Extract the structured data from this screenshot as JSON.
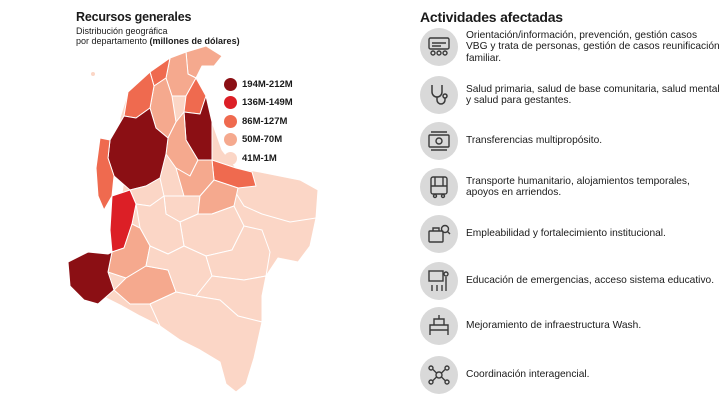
{
  "map_panel": {
    "title": "Recursos generales",
    "subtitle_line1": "Distribución geográfica",
    "subtitle_line2_prefix": "por departamento ",
    "subtitle_line2_bold": "(millones de dólares)",
    "legend": [
      {
        "label": "194M-212M",
        "color": "#8b0f14"
      },
      {
        "label": "136M-149M",
        "color": "#dc1f26"
      },
      {
        "label": "86M-127M",
        "color": "#ef6a4f"
      },
      {
        "label": "50M-70M",
        "color": "#f5a98e"
      },
      {
        "label": "41M-1M",
        "color": "#fbd6c6"
      }
    ]
  },
  "activities": {
    "title": "Actividades afectadas",
    "items": [
      {
        "icon": "people-network-icon",
        "text": "Orientación/información, prevención, gestión casos VBG y trata de personas, gestión de casos reunificación familiar."
      },
      {
        "icon": "stethoscope-icon",
        "text": "Salud primaria, salud de base comunitaria, salud mental y salud para gestantes."
      },
      {
        "icon": "cash-transfer-icon",
        "text": "Transferencias multipropósito."
      },
      {
        "icon": "bus-icon",
        "text": "Transporte humanitario, alojamientos temporales, apoyos en arriendos."
      },
      {
        "icon": "briefcase-search-icon",
        "text": "Empleabilidad y fortalecimiento institucional."
      },
      {
        "icon": "education-icon",
        "text": "Educación de emergencias, acceso sistema educativo."
      },
      {
        "icon": "water-infrastructure-icon",
        "text": "Mejoramiento de infraestructura Wash."
      },
      {
        "icon": "coordination-icon",
        "text": "Coordinación interagencial."
      }
    ]
  }
}
